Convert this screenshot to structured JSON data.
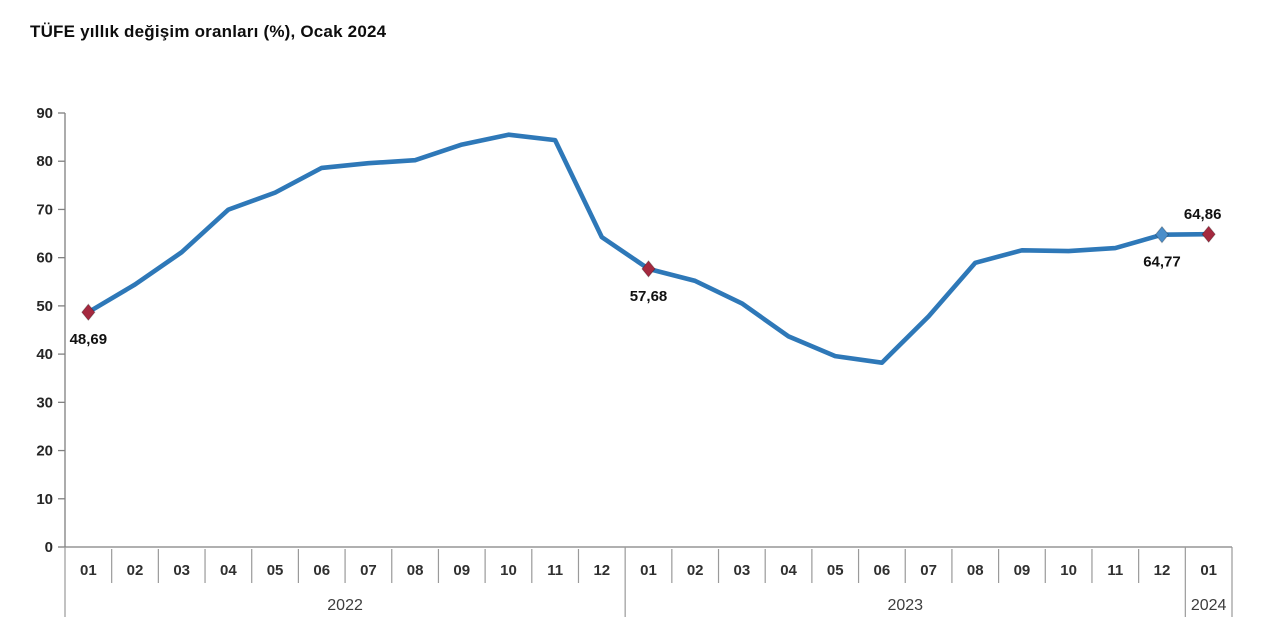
{
  "title": "TÜFE yıllık değişim oranları (%), Ocak 2024",
  "chart_data": {
    "type": "line",
    "title": "TÜFE yıllık değişim oranları (%), Ocak 2024",
    "ylim": [
      0,
      90
    ],
    "ytick_step": 10,
    "grid": false,
    "legend": "none",
    "yticks": [
      "0",
      "10",
      "20",
      "30",
      "40",
      "50",
      "60",
      "70",
      "80",
      "90"
    ],
    "groups": [
      {
        "year": "2022",
        "months": [
          "01",
          "02",
          "03",
          "04",
          "05",
          "06",
          "07",
          "08",
          "09",
          "10",
          "11",
          "12"
        ]
      },
      {
        "year": "2023",
        "months": [
          "01",
          "02",
          "03",
          "04",
          "05",
          "06",
          "07",
          "08",
          "09",
          "10",
          "11",
          "12"
        ]
      },
      {
        "year": "2024",
        "months": [
          "01"
        ]
      }
    ],
    "series": [
      {
        "name": "TÜFE yıllık değişim oranı (%)",
        "values": [
          48.69,
          54.44,
          61.14,
          69.97,
          73.5,
          78.62,
          79.6,
          80.21,
          83.45,
          85.51,
          84.39,
          64.27,
          57.68,
          55.18,
          50.51,
          43.68,
          39.59,
          38.21,
          47.83,
          58.94,
          61.53,
          61.36,
          61.98,
          64.77,
          64.86
        ]
      }
    ],
    "highlighted_points": [
      {
        "index": 0,
        "label": "48,69",
        "marker": "diamond",
        "marker_color": "#A5293F",
        "label_position": "below"
      },
      {
        "index": 12,
        "label": "57,68",
        "marker": "diamond",
        "marker_color": "#A5293F",
        "label_position": "below"
      },
      {
        "index": 23,
        "label": "64,77",
        "marker": "diamond",
        "marker_color": "#4A8ECA",
        "label_position": "below"
      },
      {
        "index": 24,
        "label": "64,86",
        "marker": "diamond",
        "marker_color": "#A5293F",
        "label_position": "above"
      }
    ],
    "colors": {
      "line": "#2E78B8",
      "axis": "#808080",
      "divider": "#9A9A9A",
      "tick_label": "#262626",
      "month_label": "#303030",
      "year_label": "#3D3D3D",
      "data_label": "#111111"
    }
  }
}
